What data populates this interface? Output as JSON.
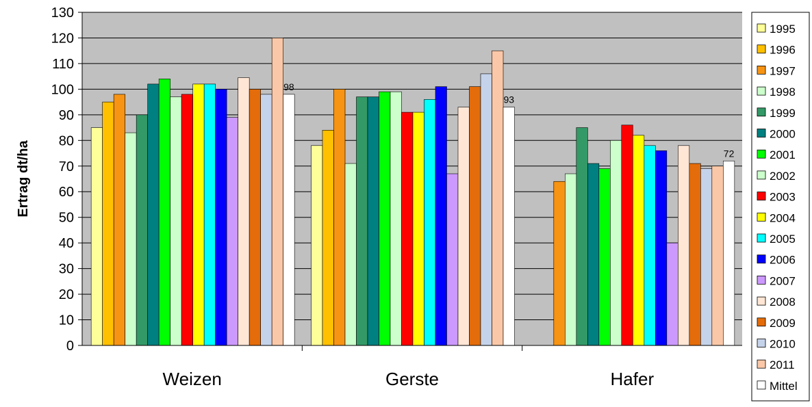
{
  "chart_data": {
    "type": "bar",
    "title": "",
    "xlabel": "",
    "ylabel": "Ertrag dt/ha",
    "ylim": [
      0,
      130
    ],
    "y_ticks": [
      0,
      10,
      20,
      30,
      40,
      50,
      60,
      70,
      80,
      90,
      100,
      110,
      120,
      130
    ],
    "grid": true,
    "plot_background": "#c0c0c0",
    "legend_position": "right",
    "categories": [
      "Weizen",
      "Gerste",
      "Hafer"
    ],
    "series": [
      {
        "name": "1995",
        "color": "#ffff99",
        "values": [
          85,
          78,
          null
        ]
      },
      {
        "name": "1996",
        "color": "#ffc000",
        "values": [
          95,
          84,
          null
        ]
      },
      {
        "name": "1997",
        "color": "#f79414",
        "values": [
          98,
          100,
          64
        ]
      },
      {
        "name": "1998",
        "color": "#ccffcc",
        "values": [
          83,
          71,
          67
        ]
      },
      {
        "name": "1999",
        "color": "#339966",
        "values": [
          90,
          97,
          85
        ]
      },
      {
        "name": "2000",
        "color": "#008080",
        "values": [
          102,
          97,
          71
        ]
      },
      {
        "name": "2001",
        "color": "#00ff00",
        "values": [
          104,
          99,
          69
        ]
      },
      {
        "name": "2002",
        "color": "#ccffcc",
        "values": [
          97,
          99,
          80
        ]
      },
      {
        "name": "2003",
        "color": "#ff0000",
        "values": [
          98,
          91,
          86
        ]
      },
      {
        "name": "2004",
        "color": "#ffff00",
        "values": [
          102,
          91,
          82
        ]
      },
      {
        "name": "2005",
        "color": "#00ffff",
        "values": [
          102,
          96,
          78
        ]
      },
      {
        "name": "2006",
        "color": "#0000ff",
        "values": [
          100,
          101,
          76
        ]
      },
      {
        "name": "2007",
        "color": "#cc99ff",
        "values": [
          89,
          67,
          40
        ]
      },
      {
        "name": "2008",
        "color": "#ffe6d5",
        "values": [
          104.5,
          93,
          78
        ]
      },
      {
        "name": "2009",
        "color": "#e46c0a",
        "values": [
          100,
          101,
          71
        ]
      },
      {
        "name": "2010",
        "color": "#c5d3ea",
        "values": [
          98,
          106,
          69
        ]
      },
      {
        "name": "2011",
        "color": "#fac8a8",
        "values": [
          120,
          115,
          70
        ]
      },
      {
        "name": "Mittel",
        "color": "#ffffff",
        "values": [
          98,
          93,
          72
        ],
        "labels": [
          "98",
          "93",
          "72"
        ]
      }
    ]
  }
}
